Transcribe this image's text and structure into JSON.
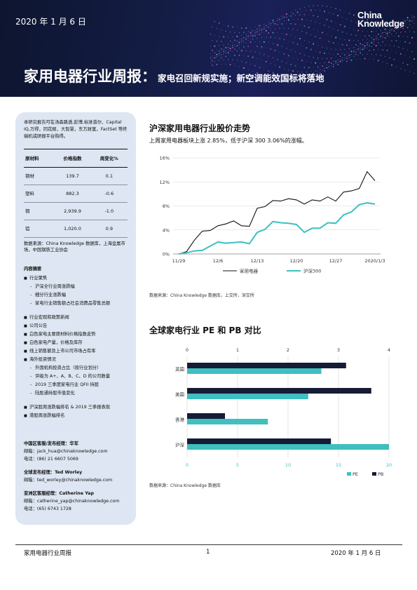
{
  "header": {
    "date": "2020 年 1 月 6 日",
    "logo_line1": "China",
    "logo_line2": "Knowledge",
    "title_main": "家用电器行业周报：",
    "title_sub": "家电召回新规实施；新空调能效国标将落地"
  },
  "sidebar": {
    "intro": "本研究报告可在汤森路透,彭博,标准普尔、Capital IQ,万得，同花顺，大智慧，东方财富，FactSet 等终端机或研报平台购得。",
    "table": {
      "headers": [
        "原材料",
        "价格指数",
        "周变化%"
      ],
      "rows": [
        [
          "铜材",
          "139.7",
          "0.1"
        ],
        [
          "塑料",
          "882.3",
          "-0.6"
        ],
        [
          "铜",
          "2,939.9",
          "-1.0"
        ],
        [
          "铝",
          "1,020.0",
          "0.9"
        ]
      ],
      "source": "数据来源：China Knowledge 数据库，上海金属市场，中国钢铁工业协会"
    },
    "toc_title": "内容摘要",
    "toc": [
      {
        "text": "行业聚焦",
        "level": "main"
      },
      {
        "text": "沪深全行业周涨跌幅",
        "level": "sub"
      },
      {
        "text": "细分行业涨跌幅",
        "level": "sub"
      },
      {
        "text": "家电行业销售额占社会消费品零售总额",
        "level": "sub"
      },
      {
        "text": "行业宏观和政策新闻",
        "level": "main",
        "gap": true
      },
      {
        "text": "公司公告",
        "level": "main"
      },
      {
        "text": "白色家电主要原材料价格指数走势",
        "level": "main"
      },
      {
        "text": "白色家电产量，价格及库存",
        "level": "main"
      },
      {
        "text": "线上销售额及上市公司市场占有率",
        "level": "main"
      },
      {
        "text": "海外投资情况",
        "level": "main"
      },
      {
        "text": "外国机构投资占比（按行业划分）",
        "level": "sub"
      },
      {
        "text": "评级为 A+、A、B、C、D 的公司数量",
        "level": "sub"
      },
      {
        "text": "2019 三季度家电行业 QFII 持股",
        "level": "sub"
      },
      {
        "text": "陆股通持股市值变化",
        "level": "sub"
      },
      {
        "text": "沪深股周涨跌幅排名 & 2019 三季报表现",
        "level": "main",
        "gap": true
      },
      {
        "text": "港股周涨跌幅排名",
        "level": "main"
      }
    ],
    "contacts": [
      {
        "role": "中国区客服/发布经理：华军",
        "email": "邮箱：jack_hua@chinaknowledge.com",
        "phone": "电话：(86) 21 6607 5069"
      },
      {
        "role": "全球发布经理：Ted Worley",
        "email": "邮箱：ted_worley@chinaknowledge.com",
        "phone": ""
      },
      {
        "role": "亚洲区客服经理：Catherine Yap",
        "email": "邮箱：catherine_yap@chinaknowledge.com",
        "phone": "电话：(65) 6743 1728"
      }
    ]
  },
  "section1": {
    "title": "沪深家用电器行业股价走势",
    "subtitle": "上周家用电器板块上涨 2.85%，低于沪深 300 3.06%的涨幅。",
    "source": "数据来源：China Knowledge 数据库，上交所，深交所"
  },
  "section2": {
    "title": "全球家电行业 PE 和 PB 对比",
    "source": "数据来源：China Knowledge 数据库"
  },
  "chart_data": [
    {
      "type": "line",
      "title": "",
      "x_ticks": [
        "11/29",
        "12/6",
        "12/13",
        "12/20",
        "12/27",
        "2020/1/3"
      ],
      "x_tick_index": [
        0,
        5,
        10,
        15,
        20,
        25
      ],
      "ylim": [
        0,
        16
      ],
      "y_ticks": [
        "0%",
        "4%",
        "8%",
        "12%",
        "16%"
      ],
      "y_tick_values": [
        0,
        4,
        8,
        12,
        16
      ],
      "legend_position": "bottom",
      "series": [
        {
          "name": "家用电器",
          "color": "#111111",
          "values": [
            0,
            0.4,
            2.3,
            3.8,
            3.9,
            4.7,
            5.0,
            5.5,
            4.7,
            4.6,
            7.6,
            7.9,
            8.9,
            8.8,
            9.2,
            9.0,
            8.3,
            9.0,
            8.8,
            9.5,
            8.8,
            10.3,
            10.5,
            10.9,
            13.7,
            12.2
          ]
        },
        {
          "name": "沪深300",
          "color": "#3fbfbf",
          "values": [
            0,
            0.2,
            0.5,
            0.6,
            1.3,
            2.0,
            1.8,
            1.9,
            2.0,
            1.7,
            3.6,
            4.1,
            5.4,
            5.2,
            5.1,
            4.9,
            3.6,
            4.3,
            4.3,
            5.2,
            5.1,
            6.5,
            7.0,
            8.2,
            8.5,
            8.3
          ]
        }
      ]
    },
    {
      "type": "bar",
      "title": "",
      "orientation": "horizontal",
      "categories": [
        "英国",
        "美国",
        "香港",
        "沪深"
      ],
      "pb_axis": {
        "ticks": [
          "0",
          "1",
          "2",
          "3",
          "4"
        ],
        "values": [
          0,
          1,
          2,
          3,
          4
        ],
        "position": "top"
      },
      "pe_axis": {
        "ticks": [
          "0",
          "5",
          "10",
          "15",
          "20"
        ],
        "values": [
          0,
          5,
          10,
          15,
          20
        ],
        "position": "bottom"
      },
      "legend_position": "bottom-right",
      "series": [
        {
          "name": "PB",
          "color": "#161b36",
          "axis": "top",
          "values": [
            3.15,
            3.65,
            0.75,
            2.85
          ]
        },
        {
          "name": "PE",
          "color": "#3fbfbf",
          "axis": "bottom",
          "values": [
            13.3,
            12.0,
            8.0,
            20.0
          ]
        }
      ]
    }
  ],
  "footer": {
    "left": "家用电器行业周报",
    "page": "1",
    "right": "2020 年 1 月 6 日"
  }
}
